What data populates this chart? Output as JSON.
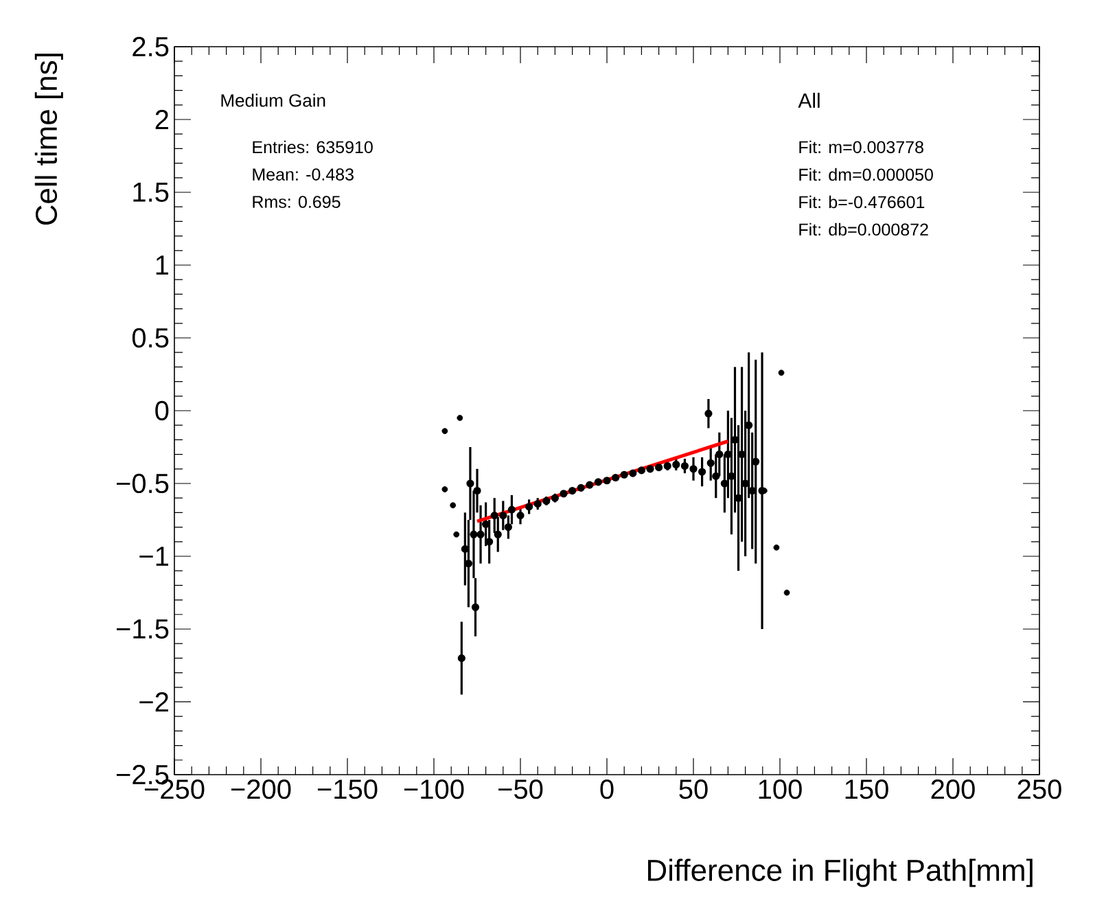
{
  "chart_data": {
    "type": "scatter",
    "xlabel": "Difference in Flight Path[mm]",
    "ylabel": "Cell time [ns]",
    "annotations": [
      "Medium Gain",
      "Entries: 635910",
      "Mean: -0.483",
      "Rms: 0.695",
      "All",
      "Fit: m=0.003778",
      "Fit: dm=0.000050",
      "Fit: b=-0.476601",
      "Fit: db=0.000872"
    ],
    "xlim": [
      -250,
      250
    ],
    "ylim": [
      -2.5,
      2.5
    ],
    "xticks": [
      {
        "value": -250,
        "label": "−250"
      },
      {
        "value": -200,
        "label": "−200"
      },
      {
        "value": -150,
        "label": "−150"
      },
      {
        "value": -100,
        "label": "−100"
      },
      {
        "value": -50,
        "label": "−50"
      },
      0,
      50,
      100,
      150,
      200,
      250
    ],
    "yticks": [
      {
        "value": -2.5,
        "label": "−2.5"
      },
      {
        "value": -2,
        "label": "−2"
      },
      {
        "value": -1.5,
        "label": "−1.5"
      },
      {
        "value": -1,
        "label": "−1"
      },
      {
        "value": -0.5,
        "label": "−0.5"
      },
      0,
      0.5,
      1,
      1.5,
      2,
      2.5
    ],
    "grid": false,
    "series": [
      {
        "color": "#000000",
        "marker": "circle",
        "x": [
          -93.7,
          -93.7,
          -89,
          -87,
          -85,
          -84,
          -82,
          -80,
          -79,
          -77,
          -76,
          -75,
          -73,
          -70,
          -68,
          -65,
          -63,
          -60,
          -57,
          -55,
          -50,
          -45,
          -40,
          -35,
          -30,
          -25,
          -20,
          -15,
          -10,
          -5,
          0,
          5,
          10,
          15,
          20,
          25,
          30,
          35,
          40,
          45,
          50,
          55,
          58.7,
          60,
          63,
          65,
          68,
          70,
          72,
          74,
          76,
          78,
          80,
          82,
          84,
          86,
          89.7,
          91,
          98,
          100.8,
          104
        ],
        "values": [
          -0.14,
          -0.54,
          -0.65,
          -0.85,
          -0.05,
          -1.7,
          -0.95,
          -1.05,
          -0.5,
          -0.85,
          -1.35,
          -0.55,
          -0.85,
          -0.78,
          -0.9,
          -0.72,
          -0.85,
          -0.72,
          -0.8,
          -0.68,
          -0.72,
          -0.66,
          -0.64,
          -0.62,
          -0.6,
          -0.57,
          -0.55,
          -0.53,
          -0.51,
          -0.49,
          -0.48,
          -0.46,
          -0.44,
          -0.43,
          -0.41,
          -0.4,
          -0.39,
          -0.38,
          -0.37,
          -0.38,
          -0.4,
          -0.42,
          -0.02,
          -0.36,
          -0.45,
          -0.3,
          -0.5,
          -0.3,
          -0.45,
          -0.2,
          -0.6,
          -0.3,
          -0.5,
          -0.1,
          -0.55,
          -0.35,
          -0.55,
          -0.55,
          -0.94,
          0.26,
          -1.25
        ],
        "errors": [
          null,
          null,
          null,
          null,
          null,
          0.25,
          0.25,
          0.3,
          0.25,
          0.3,
          0.2,
          0.15,
          0.2,
          0.15,
          0.15,
          0.12,
          0.12,
          0.1,
          0.08,
          0.1,
          0.06,
          0.05,
          0.04,
          0.03,
          0.03,
          0.02,
          0.02,
          0.02,
          0.02,
          0.01,
          0.01,
          0.01,
          0.01,
          0.01,
          0.02,
          0.02,
          0.02,
          0.03,
          0.04,
          0.05,
          0.08,
          0.1,
          0.1,
          0.12,
          0.15,
          0.15,
          0.2,
          0.3,
          0.4,
          0.5,
          0.5,
          0.6,
          0.5,
          0.5,
          0.4,
          0.7,
          0.95,
          null,
          null,
          null,
          null
        ]
      },
      {
        "type": "line",
        "marker": "none",
        "color": "#ff0000",
        "x": [
          -75,
          70
        ],
        "values": [
          -0.76,
          -0.21
        ]
      }
    ]
  }
}
